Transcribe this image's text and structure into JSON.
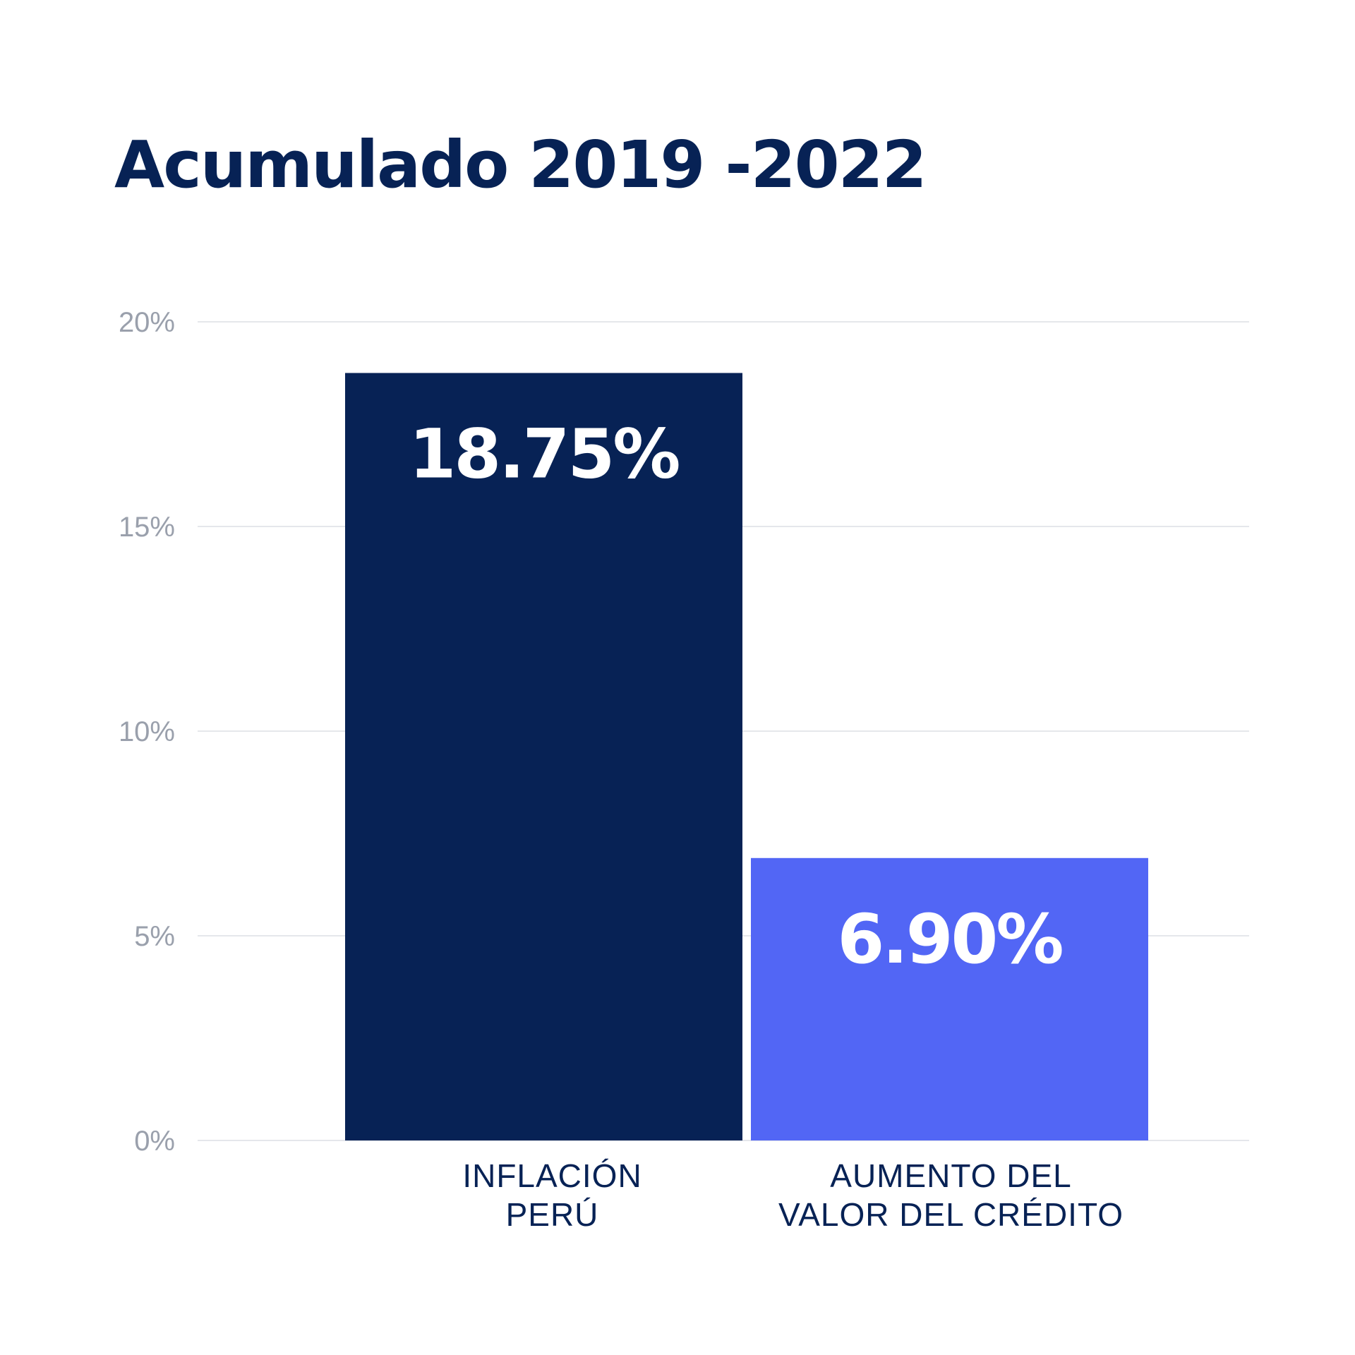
{
  "chart_data": {
    "type": "bar",
    "title": "Acumulado 2019 -2022",
    "categories": [
      [
        "INFLACIÓN",
        "PERÚ"
      ],
      [
        "AUMENTO DEL",
        "VALOR DEL CRÉDITO"
      ]
    ],
    "values": [
      18.75,
      6.9
    ],
    "value_labels": [
      "18.75%",
      "6.90%"
    ],
    "ylim": [
      0,
      20
    ],
    "yticks": [
      0,
      5,
      10,
      15,
      20
    ],
    "ytick_labels": [
      "0%",
      "5%",
      "10%",
      "15%",
      "20%"
    ],
    "grid": true,
    "legend": "none",
    "colors": {
      "bars": [
        "#072255",
        "#5266F5"
      ],
      "title": "#072255",
      "category_text": "#072255",
      "value_text": "#FFFFFF",
      "tick_text": "#9AA0AC",
      "grid": "#E5E7EB"
    }
  }
}
